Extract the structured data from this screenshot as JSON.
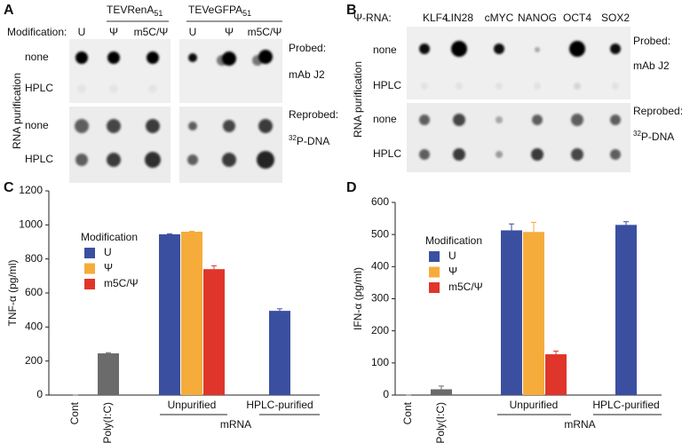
{
  "panels": [
    {
      "label": "A",
      "headers": [
        {
          "text": "TEVRenA",
          "sub": "51"
        },
        {
          "text": "TEVeGFPA",
          "sub": "51"
        }
      ],
      "modification_label": "Modification:",
      "columns": [
        "U",
        "Ψ",
        "m5C/Ψ"
      ],
      "row_group_label": "RNA purification",
      "rows": [
        "none",
        "HPLC",
        "none",
        "HPLC"
      ],
      "probe_labels": [
        "Probed:",
        "mAb J2",
        "Reprobed:"
      ],
      "reprobe": {
        "sup": "32",
        "text": "P-DNA"
      }
    },
    {
      "label": "B",
      "prefix": "Ψ-RNA:",
      "columns": [
        "KLF4",
        "LIN28",
        "cMYC",
        "NANOG",
        "OCT4",
        "SOX2"
      ],
      "row_group_label": "RNA purification",
      "rows": [
        "none",
        "HPLC",
        "none",
        "HPLC"
      ],
      "probe_labels": [
        "Probed:",
        "mAb J2",
        "Reprobed:"
      ],
      "reprobe": {
        "sup": "32",
        "text": "P-DNA"
      }
    }
  ],
  "chart_data": [
    {
      "type": "bar",
      "panel_label": "C",
      "ylabel": "TNF-α (pg/ml)",
      "categories": [
        "Cont",
        "Poly(I:C)",
        "Unpurified",
        "HPLC-purified"
      ],
      "group_label": "mRNA",
      "legend_title": "Modification",
      "series": [
        {
          "name": "U",
          "color": "#3b4fa0",
          "values": [
            null,
            null,
            945,
            495
          ],
          "errors": [
            null,
            null,
            3,
            12
          ]
        },
        {
          "name": "Ψ",
          "color": "#f5ac3b",
          "values": [
            null,
            null,
            960,
            null
          ],
          "errors": [
            null,
            null,
            3,
            null
          ]
        },
        {
          "name": "m5C/Ψ",
          "color": "#e0352a",
          "values": [
            null,
            null,
            740,
            null
          ],
          "errors": [
            null,
            null,
            20,
            null
          ]
        }
      ],
      "control": {
        "color": "#6b6b6b",
        "values": [
          0,
          245,
          null,
          null
        ],
        "errors": [
          0,
          4,
          null,
          null
        ]
      },
      "ylim": [
        0,
        1200
      ],
      "yticks": [
        0,
        200,
        400,
        600,
        800,
        1000,
        1200
      ]
    },
    {
      "type": "bar",
      "panel_label": "D",
      "ylabel": "IFN-α (pg/ml)",
      "categories": [
        "Cont",
        "Poly(I:C)",
        "Unpurified",
        "HPLC-purified"
      ],
      "group_label": "mRNA",
      "legend_title": "Modification",
      "series": [
        {
          "name": "U",
          "color": "#3b4fa0",
          "values": [
            null,
            null,
            513,
            530
          ],
          "errors": [
            null,
            null,
            20,
            10
          ]
        },
        {
          "name": "Ψ",
          "color": "#f5ac3b",
          "values": [
            null,
            null,
            508,
            null
          ],
          "errors": [
            null,
            null,
            30,
            null
          ]
        },
        {
          "name": "m5C/Ψ",
          "color": "#e0352a",
          "values": [
            null,
            null,
            127,
            null
          ],
          "errors": [
            null,
            null,
            10,
            null
          ]
        }
      ],
      "control": {
        "color": "#6b6b6b",
        "values": [
          0,
          18,
          null,
          null
        ],
        "errors": [
          0,
          10,
          null,
          null
        ]
      },
      "ylim": [
        0,
        600
      ],
      "yticks": [
        0,
        100,
        200,
        300,
        400,
        500,
        600
      ]
    }
  ]
}
